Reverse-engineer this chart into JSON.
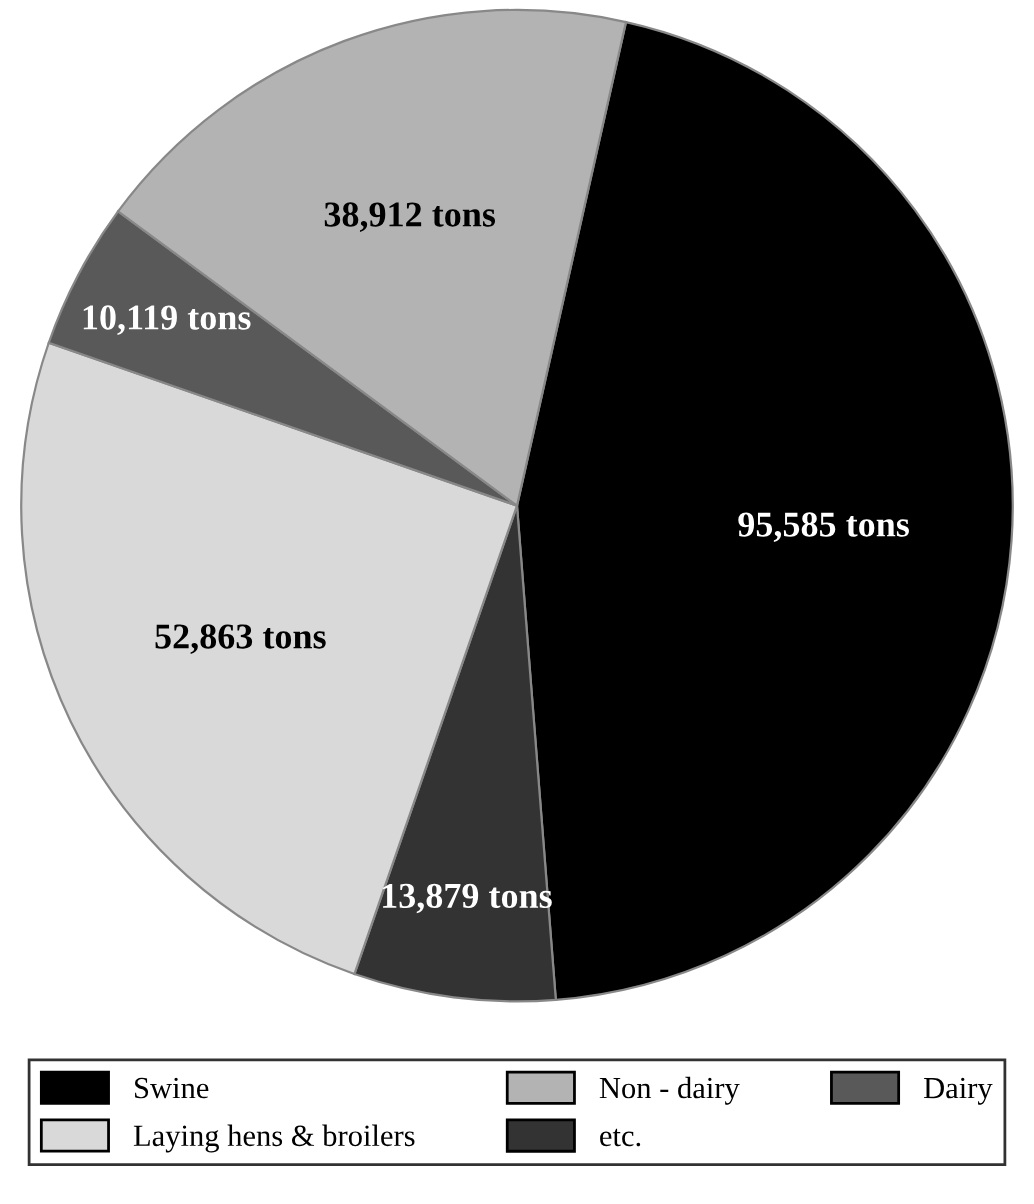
{
  "chart_data": {
    "type": "pie",
    "categories": [
      "Swine",
      "etc.",
      "Laying hens & broilers",
      "Dairy",
      "Non - dairy"
    ],
    "values": [
      95585,
      13879,
      52863,
      10119,
      38912
    ],
    "colors": [
      "#000000",
      "#333333",
      "#d9d9d9",
      "#595959",
      "#b3b3b3"
    ],
    "value_labels": [
      "95,585 tons",
      "13,879 tons",
      "52,863 tons",
      "10,119 tons",
      "38,912 tons"
    ],
    "legend": "bottom"
  }
}
